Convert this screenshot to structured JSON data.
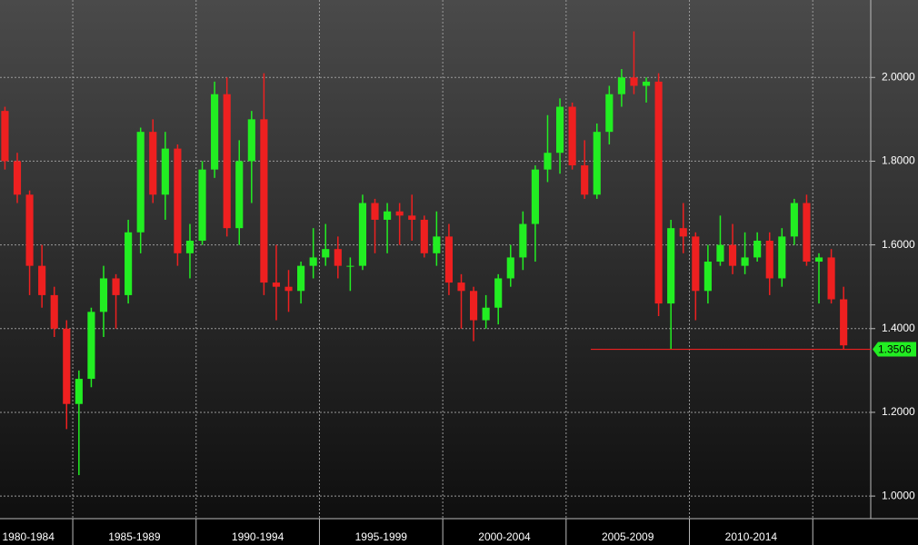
{
  "chart_data": {
    "type": "candlestick",
    "up_color": "#22ee22",
    "down_color": "#ee2020",
    "grid": true,
    "xlim": [
      1982.05,
      2017.35
    ],
    "ylim": [
      0.946,
      2.185
    ],
    "yticks": [
      {
        "value": 1.0,
        "label": "1.0000"
      },
      {
        "value": 1.2,
        "label": "1.2000"
      },
      {
        "value": 1.4,
        "label": "1.4000"
      },
      {
        "value": 1.6,
        "label": "1.6000"
      },
      {
        "value": 1.8,
        "label": "1.8000"
      },
      {
        "value": 2.0,
        "label": "2.0000"
      }
    ],
    "xticks": [
      {
        "value": 1983.2,
        "label": "1980-1984"
      },
      {
        "value": 1987.5,
        "label": "1985-1989"
      },
      {
        "value": 1992.5,
        "label": "1990-1994"
      },
      {
        "value": 1997.5,
        "label": "1995-1999"
      },
      {
        "value": 2002.5,
        "label": "2000-2004"
      },
      {
        "value": 2007.5,
        "label": "2005-2009"
      },
      {
        "value": 2012.5,
        "label": "2010-2014"
      }
    ],
    "x_dividers": [
      1985,
      1990,
      1995,
      2000,
      2005,
      2010,
      2015
    ],
    "x": [
      1982.25,
      1982.75,
      1983.25,
      1983.75,
      1984.25,
      1984.75,
      1985.25,
      1985.75,
      1986.25,
      1986.75,
      1987.25,
      1987.75,
      1988.25,
      1988.75,
      1989.25,
      1989.75,
      1990.25,
      1990.75,
      1991.25,
      1991.75,
      1992.25,
      1992.75,
      1993.25,
      1993.75,
      1994.25,
      1994.75,
      1995.25,
      1995.75,
      1996.25,
      1996.75,
      1997.25,
      1997.75,
      1998.25,
      1998.75,
      1999.25,
      1999.75,
      2000.25,
      2000.75,
      2001.25,
      2001.75,
      2002.25,
      2002.75,
      2003.25,
      2003.75,
      2004.25,
      2004.75,
      2005.25,
      2005.75,
      2006.25,
      2006.75,
      2007.25,
      2007.75,
      2008.25,
      2008.75,
      2009.25,
      2009.75,
      2010.25,
      2010.75,
      2011.25,
      2011.75,
      2012.25,
      2012.75,
      2013.25,
      2013.75,
      2014.25,
      2014.75,
      2015.25,
      2015.75,
      2016.25
    ],
    "open": [
      1.92,
      1.8,
      1.72,
      1.55,
      1.48,
      1.4,
      1.22,
      1.28,
      1.44,
      1.52,
      1.48,
      1.63,
      1.87,
      1.72,
      1.83,
      1.58,
      1.61,
      1.78,
      1.96,
      1.64,
      1.8,
      1.9,
      1.51,
      1.5,
      1.49,
      1.55,
      1.57,
      1.59,
      1.55,
      1.55,
      1.7,
      1.66,
      1.68,
      1.67,
      1.66,
      1.58,
      1.62,
      1.51,
      1.49,
      1.42,
      1.45,
      1.52,
      1.57,
      1.65,
      1.78,
      1.82,
      1.93,
      1.79,
      1.72,
      1.87,
      1.96,
      2.0,
      1.98,
      1.99,
      1.46,
      1.64,
      1.62,
      1.49,
      1.56,
      1.6,
      1.55,
      1.57,
      1.61,
      1.52,
      1.62,
      1.7,
      1.56,
      1.57,
      1.47
    ],
    "high": [
      1.93,
      1.82,
      1.73,
      1.6,
      1.5,
      1.42,
      1.3,
      1.45,
      1.55,
      1.53,
      1.66,
      1.88,
      1.9,
      1.87,
      1.84,
      1.65,
      1.8,
      1.99,
      2.0,
      1.85,
      1.92,
      2.01,
      1.6,
      1.54,
      1.56,
      1.64,
      1.65,
      1.62,
      1.57,
      1.72,
      1.71,
      1.7,
      1.7,
      1.72,
      1.67,
      1.68,
      1.65,
      1.53,
      1.5,
      1.48,
      1.53,
      1.6,
      1.68,
      1.79,
      1.91,
      1.95,
      1.94,
      1.85,
      1.89,
      1.98,
      2.02,
      2.11,
      2.0,
      2.01,
      1.66,
      1.7,
      1.63,
      1.6,
      1.67,
      1.65,
      1.63,
      1.63,
      1.63,
      1.64,
      1.71,
      1.72,
      1.58,
      1.59,
      1.5
    ],
    "low": [
      1.78,
      1.7,
      1.48,
      1.45,
      1.38,
      1.16,
      1.05,
      1.26,
      1.38,
      1.4,
      1.46,
      1.58,
      1.7,
      1.66,
      1.55,
      1.52,
      1.6,
      1.76,
      1.62,
      1.6,
      1.7,
      1.48,
      1.42,
      1.44,
      1.46,
      1.52,
      1.55,
      1.52,
      1.49,
      1.54,
      1.58,
      1.58,
      1.6,
      1.61,
      1.57,
      1.55,
      1.48,
      1.4,
      1.37,
      1.4,
      1.41,
      1.5,
      1.54,
      1.56,
      1.75,
      1.77,
      1.78,
      1.71,
      1.71,
      1.84,
      1.93,
      1.96,
      1.94,
      1.43,
      1.35,
      1.58,
      1.42,
      1.46,
      1.55,
      1.53,
      1.53,
      1.56,
      1.48,
      1.5,
      1.6,
      1.55,
      1.46,
      1.46,
      1.3506
    ],
    "close": [
      1.8,
      1.72,
      1.55,
      1.48,
      1.4,
      1.22,
      1.28,
      1.44,
      1.52,
      1.48,
      1.63,
      1.87,
      1.72,
      1.83,
      1.58,
      1.61,
      1.78,
      1.96,
      1.64,
      1.8,
      1.9,
      1.51,
      1.5,
      1.49,
      1.55,
      1.57,
      1.59,
      1.55,
      1.55,
      1.7,
      1.66,
      1.68,
      1.67,
      1.66,
      1.58,
      1.62,
      1.51,
      1.49,
      1.42,
      1.45,
      1.52,
      1.57,
      1.65,
      1.78,
      1.82,
      1.93,
      1.79,
      1.72,
      1.87,
      1.96,
      2.0,
      1.98,
      1.99,
      1.46,
      1.64,
      1.62,
      1.49,
      1.56,
      1.6,
      1.55,
      1.57,
      1.61,
      1.52,
      1.62,
      1.7,
      1.56,
      1.57,
      1.47,
      1.36
    ],
    "hline": {
      "value": 1.3506,
      "label": "1.3506",
      "from": 2006.0,
      "color": "#ee2020",
      "label_color": "#22ee22"
    }
  }
}
